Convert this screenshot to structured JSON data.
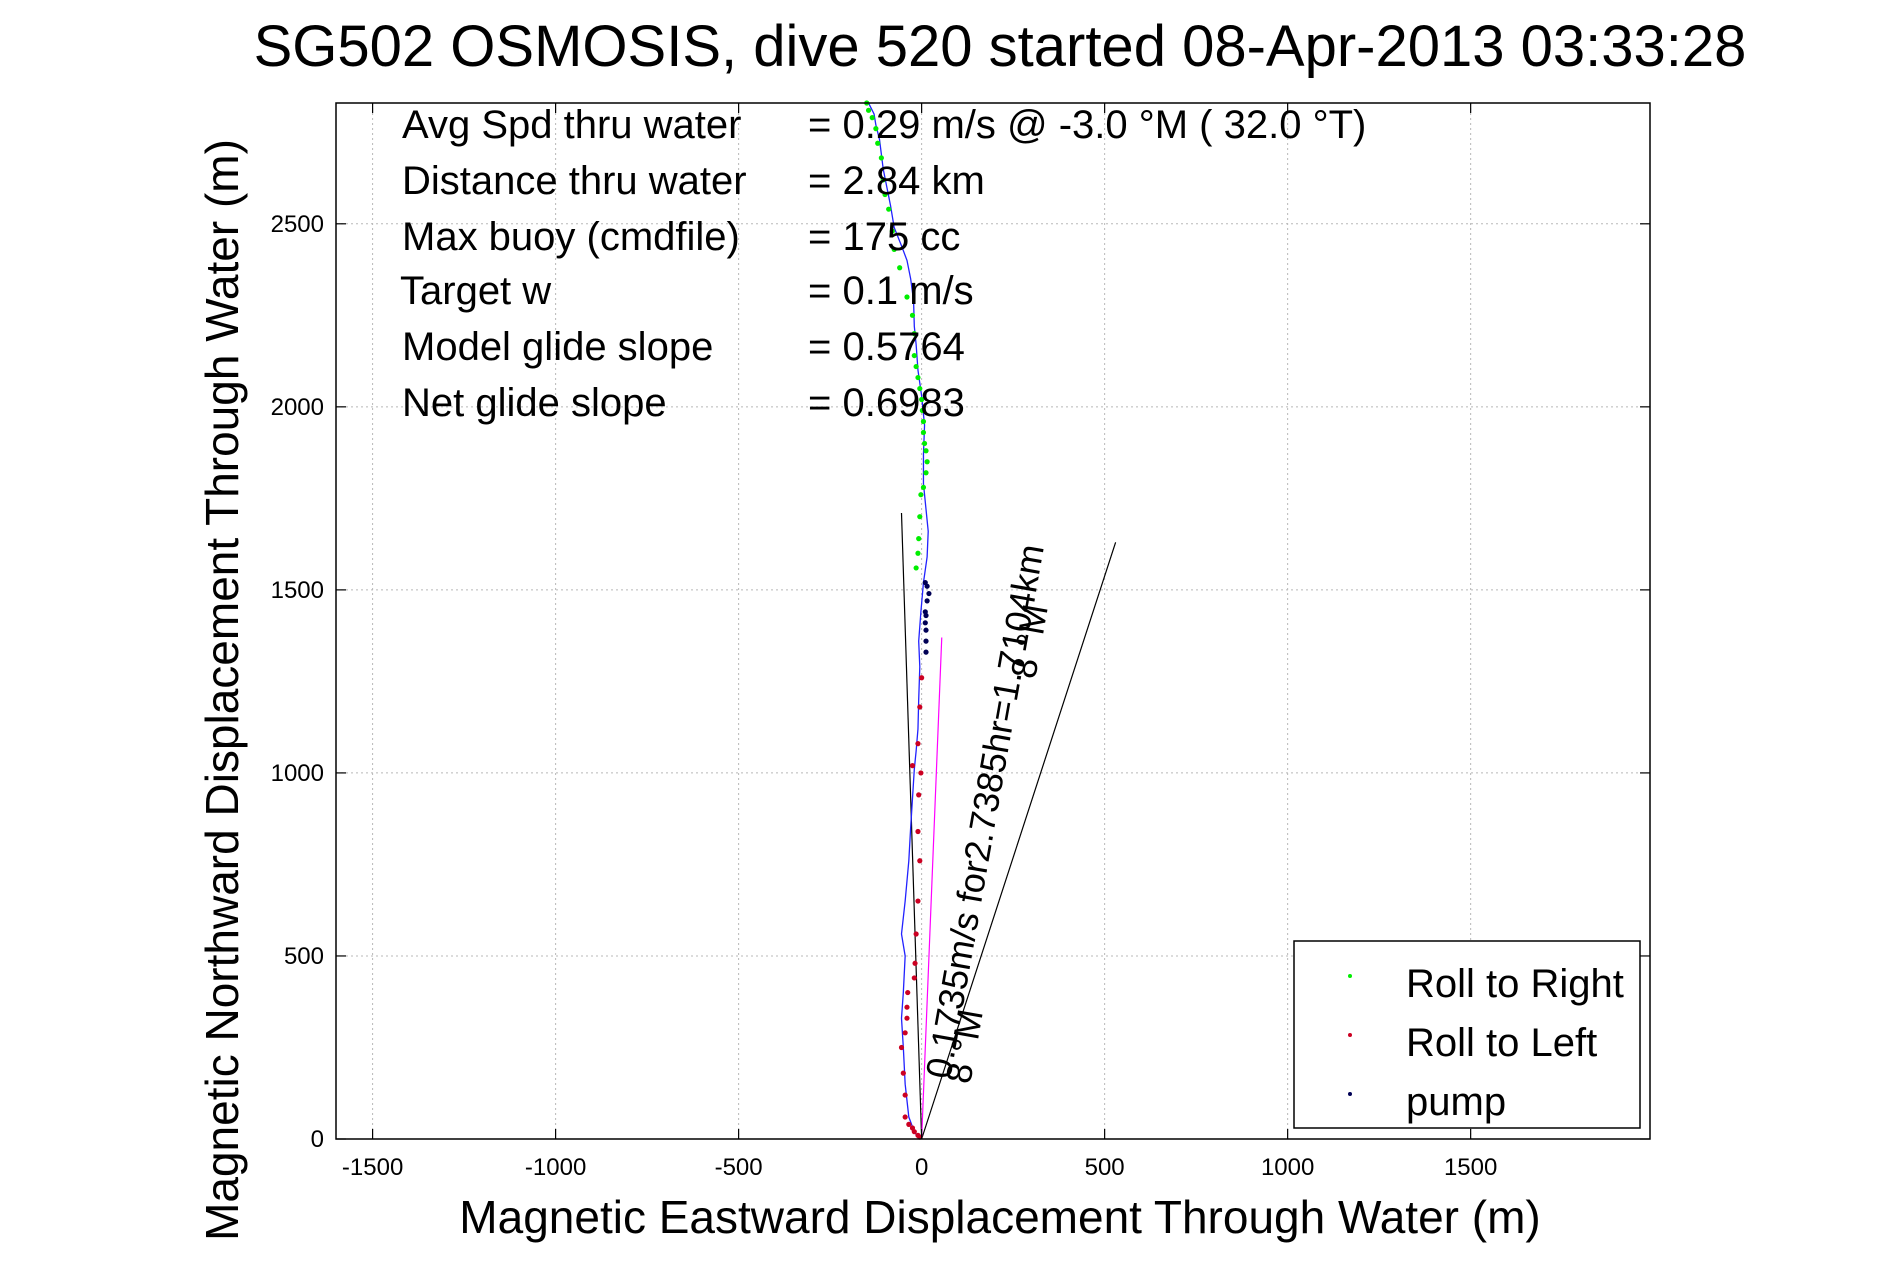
{
  "chart_data": {
    "type": "scatter",
    "title": "SG502 OSMOSIS, dive 520 started 08-Apr-2013 03:33:28",
    "xlabel": "Magnetic Eastward Displacement Through Water (m)",
    "ylabel": "Magnetic Northward Displacement Through Water (m)",
    "xlim": [
      -1600,
      1990
    ],
    "ylim": [
      0,
      2830
    ],
    "x_ticks": [
      "-1500",
      "-1000",
      "-500",
      "0",
      "500",
      "1000",
      "1500"
    ],
    "y_ticks": [
      "0",
      "500",
      "1000",
      "1500",
      "2000",
      "2500"
    ],
    "x_tick_values": [
      -1500,
      -1000,
      -500,
      0,
      500,
      1000,
      1500
    ],
    "y_tick_values": [
      0,
      500,
      1000,
      1500,
      2000,
      2500
    ],
    "grid": true,
    "legend_placement": "bottom-right",
    "info_lines": [
      {
        "label": "Avg Spd thru water",
        "value": "=  0.29 m/s @  -3.0 °M ( 32.0 °T)"
      },
      {
        "label": "Distance thru water",
        "value": "=  2.84 km"
      },
      {
        "label": "Max buoy (cmdfile)",
        "value": "= 175 cc"
      },
      {
        "label": "Target w",
        "value": "= 0.1 m/s"
      },
      {
        "label": "Model glide slope",
        "value": "= 0.5764"
      },
      {
        "label": "Net glide slope",
        "value": "= 0.6983"
      }
    ],
    "annotations": {
      "current_label": "0.1735m/s for2.7385hr=1.7104km",
      "heading_label_base": "8 °M",
      "heading_label_mid": "8 °M"
    },
    "track": {
      "x": [
        -7,
        -20,
        -35,
        -45,
        -50,
        -55,
        -50,
        -45,
        -55,
        -45,
        -35,
        -30,
        -25,
        -20,
        -15,
        -10,
        -8,
        -5,
        -8,
        -2,
        5,
        15,
        18,
        12,
        5,
        5,
        8,
        0,
        -10,
        -15,
        -20,
        -22,
        -30,
        -40,
        -55,
        -75,
        -85,
        -95,
        -105,
        -110,
        -115,
        -125,
        -130,
        -140,
        -145,
        -150
      ],
      "y": [
        0,
        20,
        60,
        150,
        250,
        330,
        400,
        500,
        560,
        650,
        760,
        850,
        930,
        1010,
        1060,
        1120,
        1200,
        1290,
        1360,
        1440,
        1520,
        1590,
        1660,
        1720,
        1790,
        1870,
        1950,
        2030,
        2100,
        2170,
        2220,
        2290,
        2350,
        2400,
        2440,
        2490,
        2550,
        2600,
        2650,
        2690,
        2730,
        2770,
        2800,
        2820,
        2830,
        2835
      ]
    },
    "series": [
      {
        "name": "Roll to Right",
        "color": "#00ee00",
        "marker": "dot",
        "x": [
          -15,
          -10,
          -8,
          -5,
          -2,
          5,
          12,
          15,
          12,
          8,
          5,
          5,
          2,
          0,
          -5,
          -10,
          -15,
          -20,
          -20,
          -25,
          -40,
          -60,
          -75,
          -80,
          -90,
          -100,
          -105,
          -110,
          -120,
          -125,
          -135,
          -145,
          -150
        ],
        "y": [
          1560,
          1600,
          1640,
          1700,
          1760,
          1780,
          1820,
          1850,
          1880,
          1900,
          1930,
          1960,
          1990,
          2020,
          2050,
          2080,
          2110,
          2140,
          2200,
          2250,
          2300,
          2380,
          2430,
          2480,
          2540,
          2580,
          2620,
          2680,
          2720,
          2760,
          2790,
          2810,
          2830
        ]
      },
      {
        "name": "Roll to Left",
        "color": "#cc0022",
        "marker": "dot",
        "x": [
          -5,
          -10,
          -20,
          -25,
          -35,
          -45,
          -45,
          -50,
          -55,
          -45,
          -40,
          -40,
          -38,
          -20,
          -18,
          -15,
          -10,
          -5,
          -10,
          -8,
          -2,
          -25,
          -10,
          -5,
          0
        ],
        "y": [
          5,
          10,
          20,
          30,
          40,
          60,
          120,
          180,
          250,
          290,
          330,
          360,
          400,
          440,
          480,
          560,
          650,
          760,
          840,
          940,
          1000,
          1020,
          1080,
          1180,
          1260
        ]
      },
      {
        "name": "pump",
        "color": "#000055",
        "marker": "dot",
        "x": [
          12,
          12,
          12,
          10,
          12,
          10,
          15,
          20,
          15,
          10
        ],
        "y": [
          1330,
          1360,
          1390,
          1410,
          1430,
          1440,
          1470,
          1490,
          1510,
          1520
        ]
      }
    ],
    "lines": [
      {
        "color": "#000000",
        "x": [
          0,
          -55
        ],
        "y": [
          0,
          1710
        ]
      },
      {
        "color": "#000000",
        "x": [
          0,
          530
        ],
        "y": [
          0,
          1630
        ]
      },
      {
        "color": "#ff00ff",
        "x": [
          0,
          55
        ],
        "y": [
          0,
          1370
        ]
      }
    ]
  }
}
